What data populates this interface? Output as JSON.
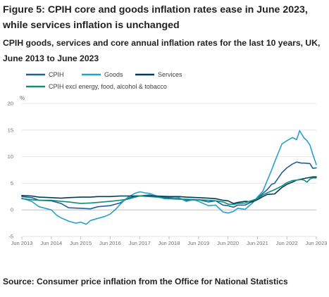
{
  "title": "Figure 5: CPIH core and goods inflation rates ease in June 2023, while services inflation is unchanged",
  "subtitle": "CPIH goods, services and core annual inflation rates for the last 10 years, UK, June 2013 to June 2023",
  "source": "Source: Consumer price inflation from the Office for National Statistics",
  "chart_data": {
    "type": "line",
    "ylabel": "%",
    "ylim": [
      -5,
      20
    ],
    "yticks": [
      -5,
      0,
      5,
      10,
      15,
      20
    ],
    "xlim": [
      2013.4167,
      2023.4167
    ],
    "xticks": [
      {
        "label": "Jun 2013",
        "x": 2013.4167
      },
      {
        "label": "Jun 2014",
        "x": 2014.4167
      },
      {
        "label": "Jun 2015",
        "x": 2015.4167
      },
      {
        "label": "Jun 2016",
        "x": 2016.4167
      },
      {
        "label": "Jun 2017",
        "x": 2017.4167
      },
      {
        "label": "Jun 2018",
        "x": 2018.4167
      },
      {
        "label": "Jun 2019",
        "x": 2019.4167
      },
      {
        "label": "Jun 2020",
        "x": 2020.4167
      },
      {
        "label": "Jun 2021",
        "x": 2021.4167
      },
      {
        "label": "Jun 2022",
        "x": 2022.4167
      },
      {
        "label": "Jun 2023",
        "x": 2023.4167
      }
    ],
    "grid": true,
    "legend_position": "top",
    "series": [
      {
        "name": "CPIH",
        "color": "#206095",
        "width": 1.6,
        "points": [
          [
            2013.4167,
            2.5
          ],
          [
            2013.75,
            2.3
          ],
          [
            2014.0,
            1.8
          ],
          [
            2014.4167,
            1.7
          ],
          [
            2014.75,
            1.2
          ],
          [
            2015.0,
            0.4
          ],
          [
            2015.4167,
            0.3
          ],
          [
            2015.75,
            0.2
          ],
          [
            2016.0,
            0.6
          ],
          [
            2016.4167,
            0.8
          ],
          [
            2016.75,
            1.3
          ],
          [
            2017.0,
            2.1
          ],
          [
            2017.25,
            2.6
          ],
          [
            2017.4167,
            2.6
          ],
          [
            2017.75,
            2.8
          ],
          [
            2018.0,
            2.5
          ],
          [
            2018.4167,
            2.3
          ],
          [
            2018.75,
            2.2
          ],
          [
            2019.0,
            1.8
          ],
          [
            2019.4167,
            1.9
          ],
          [
            2019.75,
            1.5
          ],
          [
            2020.0,
            1.7
          ],
          [
            2020.25,
            0.9
          ],
          [
            2020.4167,
            0.8
          ],
          [
            2020.6,
            0.5
          ],
          [
            2020.75,
            0.9
          ],
          [
            2021.0,
            0.9
          ],
          [
            2021.25,
            1.6
          ],
          [
            2021.4167,
            2.2
          ],
          [
            2021.6,
            3.1
          ],
          [
            2021.75,
            3.8
          ],
          [
            2021.9,
            4.8
          ],
          [
            2022.0,
            5.0
          ],
          [
            2022.25,
            7.0
          ],
          [
            2022.4167,
            7.9
          ],
          [
            2022.6,
            8.6
          ],
          [
            2022.75,
            9.0
          ],
          [
            2022.9,
            8.8
          ],
          [
            2023.0,
            8.8
          ],
          [
            2023.2,
            8.7
          ],
          [
            2023.3,
            7.8
          ],
          [
            2023.4167,
            7.9
          ]
        ]
      },
      {
        "name": "Goods",
        "color": "#27a0cc",
        "width": 1.6,
        "points": [
          [
            2013.4167,
            2.2
          ],
          [
            2013.75,
            1.6
          ],
          [
            2014.0,
            0.6
          ],
          [
            2014.4167,
            0.0
          ],
          [
            2014.6,
            -1.0
          ],
          [
            2014.75,
            -1.5
          ],
          [
            2015.0,
            -2.1
          ],
          [
            2015.25,
            -2.5
          ],
          [
            2015.4167,
            -2.3
          ],
          [
            2015.6,
            -2.7
          ],
          [
            2015.75,
            -2.0
          ],
          [
            2016.0,
            -1.6
          ],
          [
            2016.25,
            -1.2
          ],
          [
            2016.4167,
            -0.8
          ],
          [
            2016.6,
            0.1
          ],
          [
            2016.75,
            1.0
          ],
          [
            2017.0,
            2.3
          ],
          [
            2017.25,
            3.1
          ],
          [
            2017.4167,
            3.4
          ],
          [
            2017.6,
            3.2
          ],
          [
            2017.75,
            3.1
          ],
          [
            2018.0,
            2.6
          ],
          [
            2018.25,
            2.1
          ],
          [
            2018.4167,
            2.1
          ],
          [
            2018.75,
            2.3
          ],
          [
            2019.0,
            1.6
          ],
          [
            2019.25,
            1.9
          ],
          [
            2019.4167,
            1.6
          ],
          [
            2019.75,
            0.8
          ],
          [
            2020.0,
            0.9
          ],
          [
            2020.25,
            -0.4
          ],
          [
            2020.4167,
            -0.6
          ],
          [
            2020.6,
            -0.3
          ],
          [
            2020.75,
            0.3
          ],
          [
            2021.0,
            0.1
          ],
          [
            2021.25,
            1.3
          ],
          [
            2021.4167,
            2.4
          ],
          [
            2021.6,
            3.5
          ],
          [
            2021.75,
            5.5
          ],
          [
            2021.9,
            7.5
          ],
          [
            2022.0,
            9.0
          ],
          [
            2022.25,
            12.4
          ],
          [
            2022.4167,
            13.0
          ],
          [
            2022.6,
            13.6
          ],
          [
            2022.75,
            13.2
          ],
          [
            2022.85,
            14.9
          ],
          [
            2023.0,
            13.5
          ],
          [
            2023.1,
            13.0
          ],
          [
            2023.2,
            12.2
          ],
          [
            2023.3,
            10.4
          ],
          [
            2023.4167,
            8.5
          ]
        ]
      },
      {
        "name": "Services",
        "color": "#003c57",
        "width": 1.6,
        "points": [
          [
            2013.4167,
            2.7
          ],
          [
            2013.75,
            2.6
          ],
          [
            2014.0,
            2.4
          ],
          [
            2014.4167,
            2.3
          ],
          [
            2014.75,
            2.2
          ],
          [
            2015.0,
            2.3
          ],
          [
            2015.4167,
            2.4
          ],
          [
            2015.75,
            2.4
          ],
          [
            2016.0,
            2.5
          ],
          [
            2016.4167,
            2.5
          ],
          [
            2016.75,
            2.6
          ],
          [
            2017.0,
            2.6
          ],
          [
            2017.4167,
            2.6
          ],
          [
            2017.75,
            2.6
          ],
          [
            2018.0,
            2.6
          ],
          [
            2018.4167,
            2.5
          ],
          [
            2018.75,
            2.5
          ],
          [
            2019.0,
            2.4
          ],
          [
            2019.4167,
            2.3
          ],
          [
            2019.75,
            2.2
          ],
          [
            2020.0,
            2.1
          ],
          [
            2020.25,
            1.8
          ],
          [
            2020.4167,
            1.7
          ],
          [
            2020.6,
            1.2
          ],
          [
            2020.75,
            1.4
          ],
          [
            2021.0,
            1.6
          ],
          [
            2021.25,
            1.5
          ],
          [
            2021.4167,
            1.9
          ],
          [
            2021.6,
            2.5
          ],
          [
            2021.75,
            2.9
          ],
          [
            2022.0,
            3.0
          ],
          [
            2022.25,
            4.2
          ],
          [
            2022.4167,
            4.8
          ],
          [
            2022.6,
            5.2
          ],
          [
            2022.75,
            5.6
          ],
          [
            2023.0,
            5.9
          ],
          [
            2023.2,
            6.1
          ],
          [
            2023.3,
            6.2
          ],
          [
            2023.4167,
            6.2
          ]
        ]
      },
      {
        "name": "CPIH excl energy, food, alcohol & tobacco",
        "color": "#118c7b",
        "width": 1.6,
        "points": [
          [
            2013.4167,
            2.1
          ],
          [
            2013.75,
            1.9
          ],
          [
            2014.0,
            1.8
          ],
          [
            2014.4167,
            1.8
          ],
          [
            2014.75,
            1.6
          ],
          [
            2015.0,
            1.5
          ],
          [
            2015.4167,
            1.2
          ],
          [
            2015.75,
            1.3
          ],
          [
            2016.0,
            1.4
          ],
          [
            2016.4167,
            1.6
          ],
          [
            2016.75,
            1.8
          ],
          [
            2017.0,
            2.0
          ],
          [
            2017.4167,
            2.6
          ],
          [
            2017.75,
            2.5
          ],
          [
            2018.0,
            2.4
          ],
          [
            2018.4167,
            2.1
          ],
          [
            2018.75,
            2.0
          ],
          [
            2019.0,
            2.0
          ],
          [
            2019.4167,
            1.9
          ],
          [
            2019.75,
            1.8
          ],
          [
            2020.0,
            1.7
          ],
          [
            2020.25,
            1.5
          ],
          [
            2020.4167,
            1.1
          ],
          [
            2020.6,
            1.0
          ],
          [
            2020.75,
            1.2
          ],
          [
            2021.0,
            1.3
          ],
          [
            2021.25,
            1.8
          ],
          [
            2021.4167,
            2.1
          ],
          [
            2021.6,
            2.8
          ],
          [
            2021.75,
            3.2
          ],
          [
            2022.0,
            3.8
          ],
          [
            2022.25,
            4.5
          ],
          [
            2022.4167,
            5.1
          ],
          [
            2022.6,
            5.5
          ],
          [
            2022.75,
            5.6
          ],
          [
            2022.9,
            5.7
          ],
          [
            2023.0,
            5.6
          ],
          [
            2023.1,
            5.2
          ],
          [
            2023.2,
            5.8
          ],
          [
            2023.3,
            6.0
          ],
          [
            2023.4167,
            6.0
          ]
        ]
      }
    ]
  }
}
